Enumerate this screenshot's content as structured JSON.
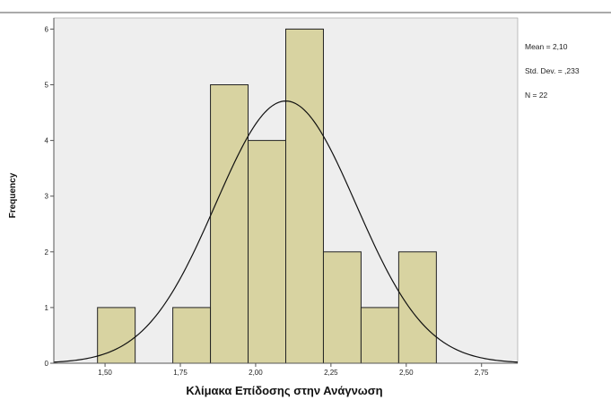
{
  "chart_data": {
    "type": "bar",
    "subtype": "histogram",
    "xlabel": "Κλίμακα Επίδοσης στην Ανάγνωση",
    "ylabel": "Frequency",
    "xlim": [
      1.33,
      2.87
    ],
    "ylim": [
      0,
      6.2
    ],
    "x_ticks": [
      {
        "value": 1.5,
        "label": "1,50"
      },
      {
        "value": 1.75,
        "label": "1,75"
      },
      {
        "value": 2.0,
        "label": "2,00"
      },
      {
        "value": 2.25,
        "label": "2,25"
      },
      {
        "value": 2.5,
        "label": "2,50"
      },
      {
        "value": 2.75,
        "label": "2,75"
      }
    ],
    "y_ticks": [
      {
        "value": 0,
        "label": "0"
      },
      {
        "value": 1,
        "label": "1"
      },
      {
        "value": 2,
        "label": "2"
      },
      {
        "value": 3,
        "label": "3"
      },
      {
        "value": 4,
        "label": "4"
      },
      {
        "value": 5,
        "label": "5"
      },
      {
        "value": 6,
        "label": "6"
      }
    ],
    "bins": [
      {
        "x0": 1.475,
        "x1": 1.6,
        "count": 1
      },
      {
        "x0": 1.6,
        "x1": 1.725,
        "count": 0
      },
      {
        "x0": 1.725,
        "x1": 1.85,
        "count": 1
      },
      {
        "x0": 1.85,
        "x1": 1.975,
        "count": 5
      },
      {
        "x0": 1.975,
        "x1": 2.1,
        "count": 4
      },
      {
        "x0": 2.1,
        "x1": 2.225,
        "count": 6
      },
      {
        "x0": 2.225,
        "x1": 2.35,
        "count": 2
      },
      {
        "x0": 2.35,
        "x1": 2.475,
        "count": 1
      },
      {
        "x0": 2.475,
        "x1": 2.6,
        "count": 2
      }
    ],
    "normal_curve": {
      "mean": 2.1,
      "sd": 0.233,
      "n": 22,
      "bin_width": 0.125
    },
    "stats_text": {
      "mean": "Mean = 2,10",
      "sd": "Std. Dev. = ,233",
      "n": "N = 22"
    },
    "colors": {
      "bar_fill": "#d8d3a1",
      "bar_stroke": "#222222",
      "plot_bg": "#eeeeee",
      "curve": "#111111"
    },
    "grid": false
  }
}
